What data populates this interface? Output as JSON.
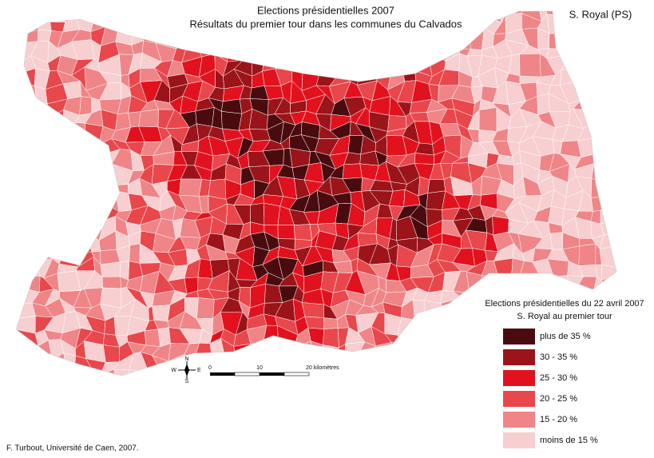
{
  "title": "Elections présidentielles 2007",
  "subtitle": "Résultats du premier tour dans les communes du Calvados",
  "candidate": "S. Royal (PS)",
  "legend": {
    "title": "Elections présidentielles du 22 avril 2007",
    "subtitle": "S. Royal au premier tour",
    "items": [
      {
        "label": "plus de 35 %",
        "color": "#4a0b0e"
      },
      {
        "label": "30 - 35 %",
        "color": "#9b1419"
      },
      {
        "label": "25 - 30 %",
        "color": "#e1121e"
      },
      {
        "label": "20 - 25 %",
        "color": "#e8474c"
      },
      {
        "label": "15 - 20 %",
        "color": "#ef8587"
      },
      {
        "label": "moins de 15 %",
        "color": "#f7cfd0"
      }
    ]
  },
  "scale_bar": {
    "labels": [
      "0",
      "10",
      "20 kilomètres"
    ]
  },
  "compass": {
    "north": "N",
    "south": "S",
    "east": "E",
    "west": "W"
  },
  "credit": "F. Turbout, Université de Caen, 2007."
}
